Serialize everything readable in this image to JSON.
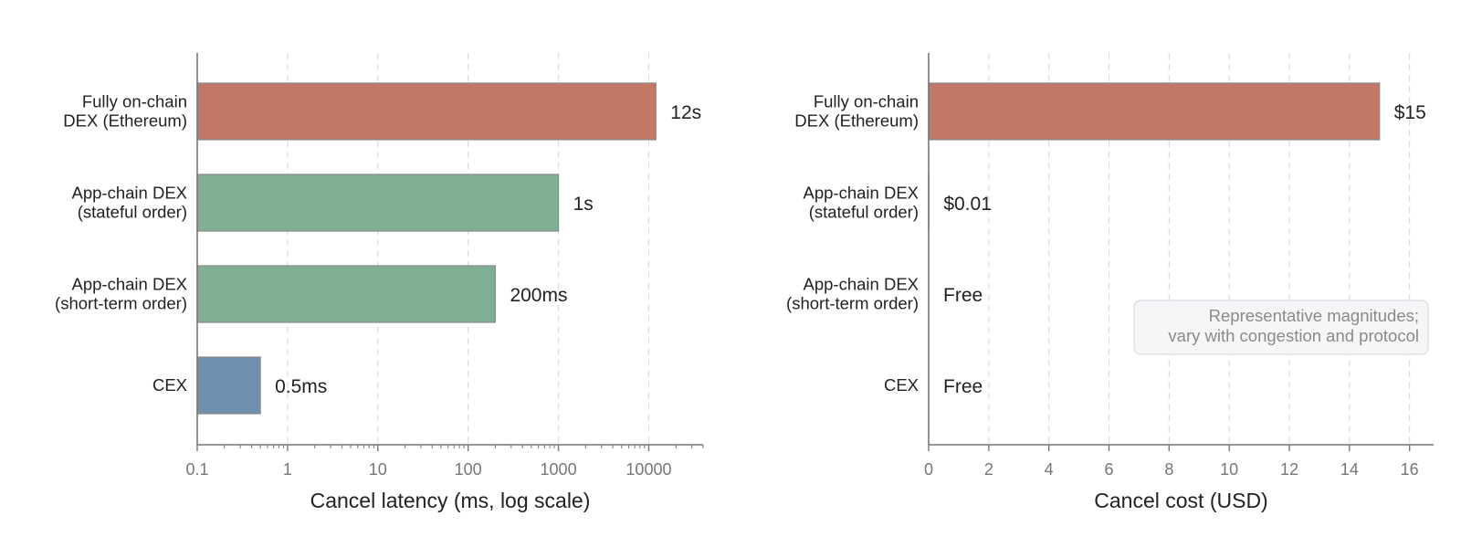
{
  "chart_data": [
    {
      "type": "bar",
      "orientation": "horizontal",
      "categories": [
        "Fully on-chain\nDEX (Ethereum)",
        "App-chain DEX\n(stateful order)",
        "App-chain DEX\n(short-term order)",
        "CEX"
      ],
      "values": [
        12000,
        1000,
        200,
        0.5
      ],
      "data_labels": [
        "12s",
        "1s",
        "200ms",
        "0.5ms"
      ],
      "colors": [
        "#c27767",
        "#7fb093",
        "#7fb093",
        "#6f8fae"
      ],
      "xlabel": "Cancel latency (ms, log scale)",
      "ylabel": "",
      "xscale": "log",
      "xlim": [
        0.1,
        40000
      ],
      "xticks": [
        0.1,
        1,
        10,
        100,
        1000,
        10000
      ],
      "xtick_labels": [
        "0.1",
        "1",
        "10",
        "100",
        "1000",
        "10000"
      ],
      "grid": "vertical dashed"
    },
    {
      "type": "bar",
      "orientation": "horizontal",
      "categories": [
        "Fully on-chain\nDEX (Ethereum)",
        "App-chain DEX\n(stateful order)",
        "App-chain DEX\n(short-term order)",
        "CEX"
      ],
      "values": [
        15,
        0.01,
        0,
        0
      ],
      "data_labels": [
        "$15",
        "$0.01",
        "Free",
        "Free"
      ],
      "colors": [
        "#c27767",
        "#7fb093",
        "#7fb093",
        "#6f8fae"
      ],
      "xlabel": "Cancel cost (USD)",
      "ylabel": "",
      "xscale": "linear",
      "xlim": [
        0,
        16.8
      ],
      "xticks": [
        0,
        2,
        4,
        6,
        8,
        10,
        12,
        14,
        16
      ],
      "xtick_labels": [
        "0",
        "2",
        "4",
        "6",
        "8",
        "10",
        "12",
        "14",
        "16"
      ],
      "grid": "vertical dashed",
      "annotation": "Representative magnitudes;\nvary with congestion and protocol"
    }
  ]
}
